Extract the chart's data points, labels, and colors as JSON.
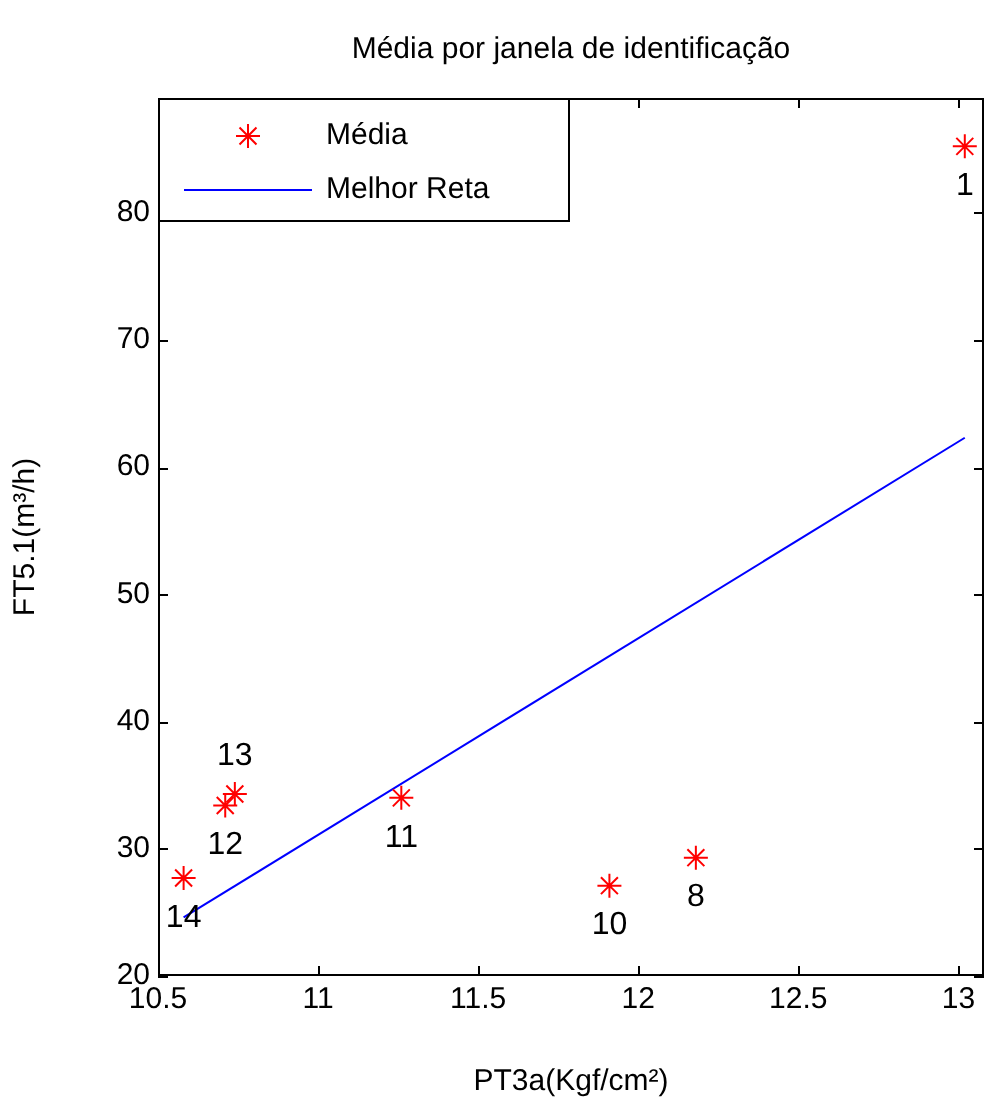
{
  "chart_data": {
    "type": "scatter",
    "title": "Média por janela de identificação",
    "xlabel": "PT3a(Kgf/cm²)",
    "ylabel": "FT5.1(m³/h)",
    "xlim": [
      10.5,
      13.08
    ],
    "xticks": [
      10.5,
      11,
      11.5,
      12,
      12.5,
      13
    ],
    "ylim": [
      20,
      89
    ],
    "yticks": [
      20,
      30,
      40,
      50,
      60,
      70,
      80
    ],
    "grid": false,
    "legend": "top left",
    "series": [
      {
        "name": "Média",
        "type": "scatter",
        "color": "#ff0000",
        "marker": "cross",
        "x": [
          13.02,
          12.18,
          11.91,
          11.26,
          10.71,
          10.74,
          10.58
        ],
        "values": [
          85.2,
          29.3,
          27.1,
          34.0,
          33.4,
          34.3,
          27.7
        ]
      },
      {
        "name": "Melhor Reta",
        "type": "line",
        "color": "#0000ff",
        "marker": "none",
        "line_style": "solid",
        "x": [
          10.58,
          13.02
        ],
        "values": [
          24.6,
          62.3
        ]
      }
    ],
    "annotations": [
      {
        "text": "1",
        "x": 13.02,
        "y": 85.2
      },
      {
        "text": "8",
        "x": 12.18,
        "y": 29.3
      },
      {
        "text": "10",
        "x": 11.91,
        "y": 27.1
      },
      {
        "text": "11",
        "x": 11.26,
        "y": 34.0
      },
      {
        "text": "12",
        "x": 10.71,
        "y": 33.4
      },
      {
        "text": "13",
        "x": 10.74,
        "y": 34.3
      },
      {
        "text": "14",
        "x": 10.58,
        "y": 27.7
      }
    ]
  }
}
